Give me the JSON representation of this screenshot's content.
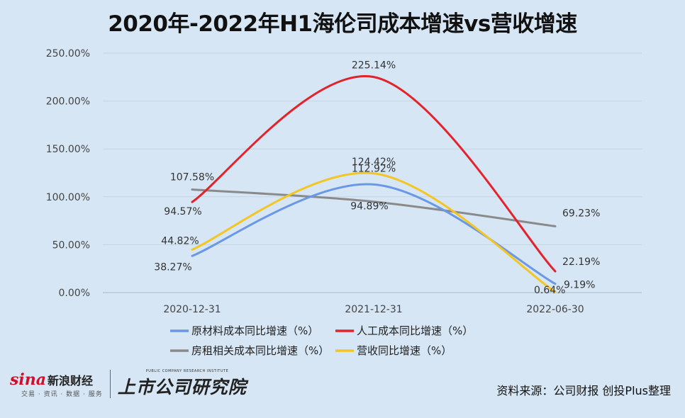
{
  "chart_data": {
    "type": "line",
    "title": "2020年-2022年H1海伦司成本增速vs营收增速",
    "categories": [
      "2020-12-31",
      "2021-12-31",
      "2022-06-30"
    ],
    "y_ticks": [
      "0.00%",
      "50.00%",
      "100.00%",
      "150.00%",
      "200.00%",
      "250.00%"
    ],
    "ylim": [
      0,
      250
    ],
    "grid": true,
    "legend_position": "bottom",
    "series": [
      {
        "name": "原材料成本同比增速（%）",
        "color": "#6a97e6",
        "values": [
          38.27,
          112.92,
          9.19
        ],
        "labels": [
          "38.27%",
          "112.92%",
          "9.19%"
        ]
      },
      {
        "name": "人工成本同比增速（%）",
        "color": "#e3232c",
        "values": [
          94.57,
          225.14,
          22.19
        ],
        "labels": [
          "94.57%",
          "225.14%",
          "22.19%"
        ]
      },
      {
        "name": "房租相关成本同比增速（%）",
        "color": "#8a8a8a",
        "values": [
          107.58,
          94.89,
          69.23
        ],
        "labels": [
          "107.58%",
          "94.89%",
          "69.23%"
        ]
      },
      {
        "name": "营收同比增速（%）",
        "color": "#f3c623",
        "values": [
          44.82,
          124.42,
          0.64
        ],
        "labels": [
          "44.82%",
          "124.42%",
          "0.64%"
        ]
      }
    ]
  },
  "footer": {
    "sina_logo_word": "sina",
    "sina_logo_cn": "新浪财经",
    "sina_sub": "交易 · 资讯 · 数据 · 服务",
    "research_en": "PUBLIC COMPANY RESEARCH INSTITUTE",
    "research_cn": "上市公司研究院",
    "source": "资料来源：公司财报 创投Plus整理"
  }
}
